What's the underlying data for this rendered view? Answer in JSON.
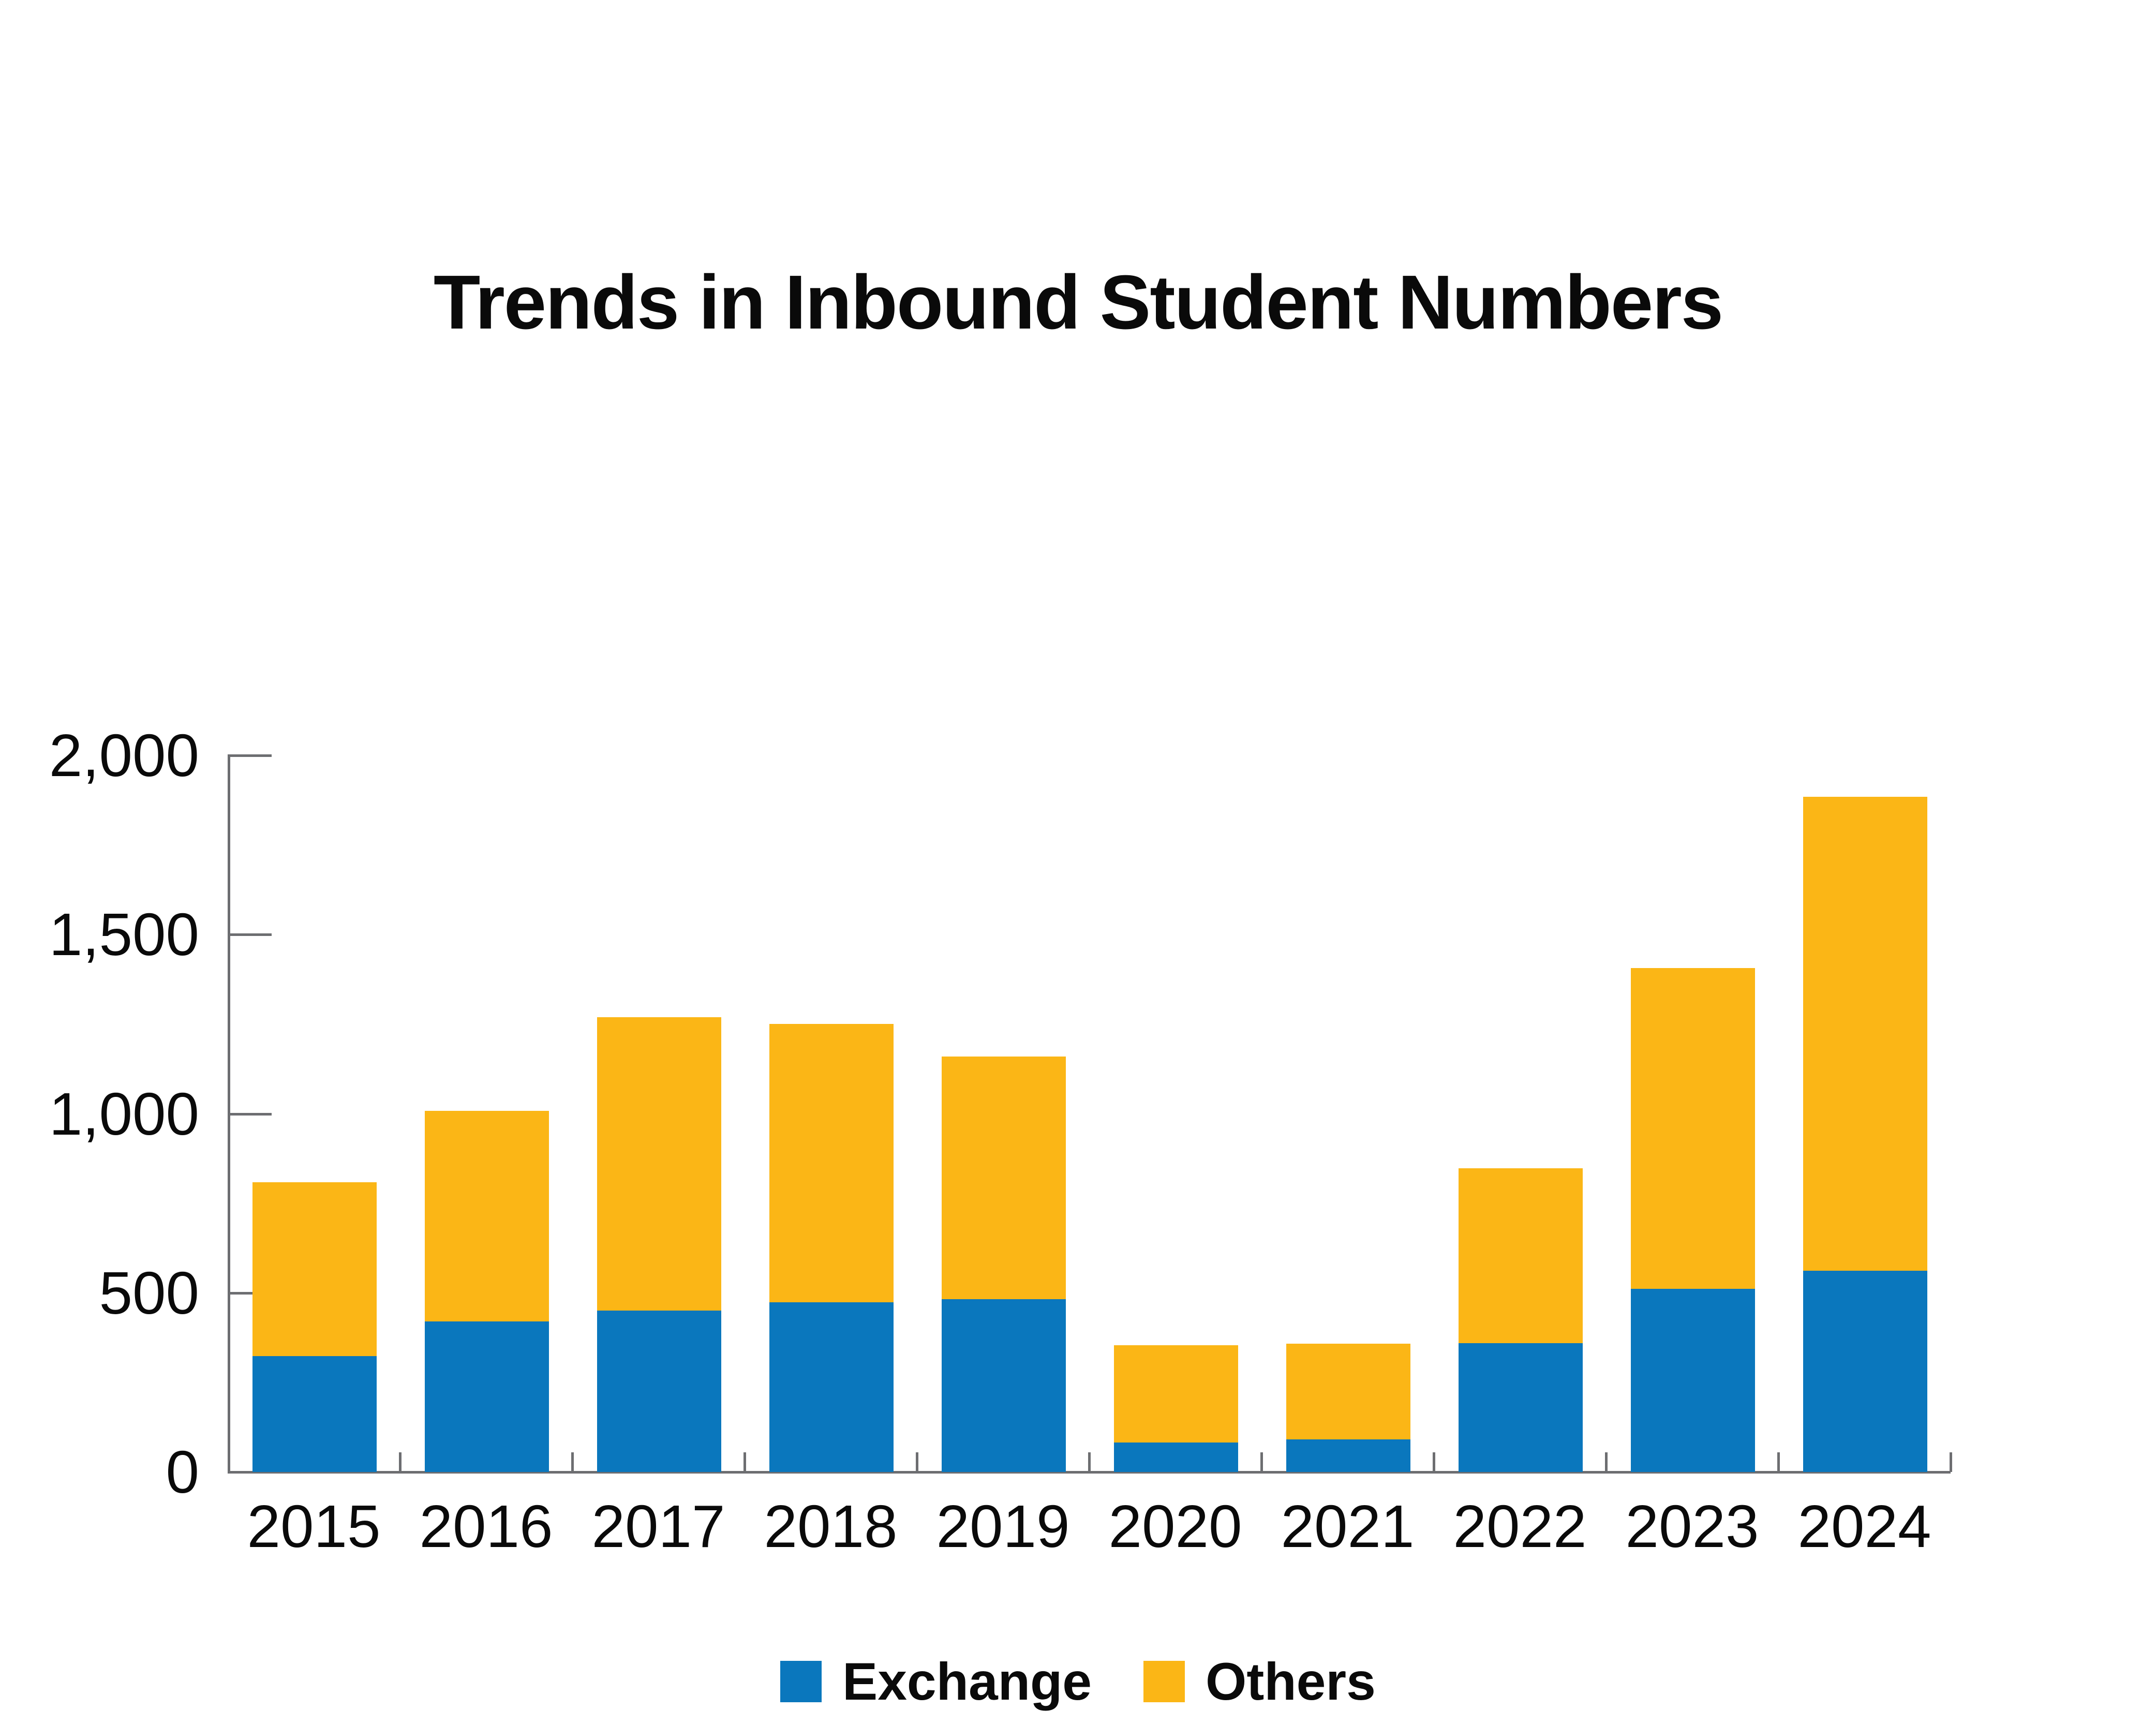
{
  "title": "Trends in Inbound Student Numbers",
  "colors": {
    "exchange": "#0A77BD",
    "others": "#FBB616",
    "axis": "#6D6E71"
  },
  "legend": [
    {
      "label": "Exchange",
      "color": "#0A77BD"
    },
    {
      "label": "Others",
      "color": "#FBB616"
    }
  ],
  "y_ticks": [
    "0",
    "500",
    "1,000",
    "1,500",
    "2,000"
  ],
  "chart_data": {
    "type": "bar",
    "stacked": true,
    "title": "Trends in Inbound Student Numbers",
    "xlabel": "",
    "ylabel": "",
    "ylim": [
      0,
      2000
    ],
    "yticks": [
      0,
      500,
      1000,
      1500,
      2000
    ],
    "grid": false,
    "legend_position": "bottom",
    "categories": [
      "2015",
      "2016",
      "2017",
      "2018",
      "2019",
      "2020",
      "2021",
      "2022",
      "2023",
      "2024"
    ],
    "series": [
      {
        "name": "Exchange",
        "color": "#0A77BD",
        "values": [
          323,
          420,
          450,
          474,
          483,
          83,
          91,
          359,
          511,
          562
        ]
      },
      {
        "name": "Others",
        "color": "#FBB616",
        "values": [
          486,
          588,
          819,
          776,
          677,
          271,
          267,
          489,
          895,
          1323
        ]
      }
    ],
    "totals": [
      809,
      1008,
      1269,
      1250,
      1160,
      354,
      358,
      848,
      1406,
      1885
    ]
  }
}
